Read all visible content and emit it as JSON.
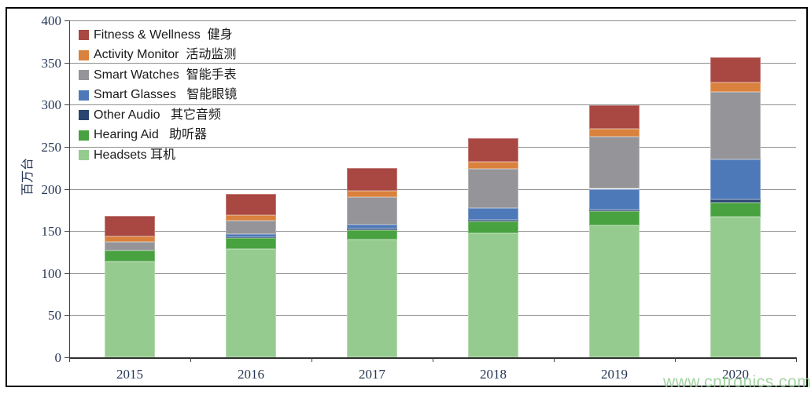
{
  "watermark": "www.cntronics.com",
  "chart_data": {
    "type": "bar",
    "stacked": true,
    "title": "",
    "xlabel": "",
    "ylabel": "百万台",
    "ylim": [
      0,
      400
    ],
    "ytick_step": 50,
    "grid": true,
    "legend_position": "top-left",
    "categories": [
      "2015",
      "2016",
      "2017",
      "2018",
      "2019",
      "2020"
    ],
    "series": [
      {
        "name": "Headsets 耳机",
        "color": "#96CB8F",
        "values": [
          114,
          129,
          140,
          147,
          157,
          167
        ]
      },
      {
        "name": "Hearing Aid   助听器",
        "color": "#47A23F",
        "values": [
          13,
          13,
          11,
          14,
          16,
          17
        ]
      },
      {
        "name": "Other Audio   其它音频",
        "color": "#2A4470",
        "values": [
          0,
          1,
          2,
          2,
          2,
          3
        ]
      },
      {
        "name": "Smart Glasses   智能眼镜",
        "color": "#4E79B8",
        "values": [
          0,
          3,
          5,
          14,
          25,
          48
        ]
      },
      {
        "name": "Smart Watches  智能手表",
        "color": "#959499",
        "values": [
          10,
          16,
          32,
          47,
          62,
          80
        ]
      },
      {
        "name": "Activity Monitor  活动监测",
        "color": "#D9813D",
        "values": [
          7,
          7,
          8,
          8,
          9,
          11
        ]
      },
      {
        "name": "Fitness & Wellness  健身",
        "color": "#A94742",
        "values": [
          24,
          25,
          27,
          28,
          28,
          30
        ]
      }
    ],
    "totals": [
      168,
      194,
      225,
      260,
      299,
      356
    ]
  }
}
